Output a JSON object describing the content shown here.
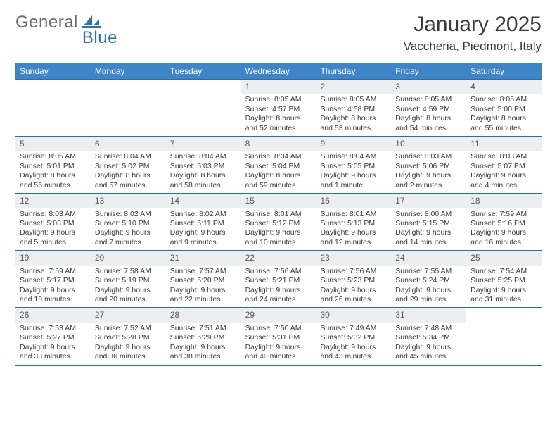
{
  "brand": {
    "name_a": "General",
    "name_b": "Blue"
  },
  "header": {
    "month_title": "January 2025",
    "location": "Vaccheria, Piedmont, Italy"
  },
  "weekdays": [
    "Sunday",
    "Monday",
    "Tuesday",
    "Wednesday",
    "Thursday",
    "Friday",
    "Saturday"
  ],
  "colors": {
    "header_bar": "#3d85c6",
    "header_text": "#ffffff",
    "week_divider": "#2e6aa3",
    "daynum_bg": "#eceff1",
    "body_text": "#3a3a3a",
    "logo_gray": "#6a6a6a",
    "logo_blue": "#2f72b3",
    "page_bg": "#ffffff"
  },
  "layout": {
    "columns": 7,
    "rows": 5
  },
  "weeks": [
    [
      {
        "empty": true
      },
      {
        "empty": true
      },
      {
        "empty": true
      },
      {
        "num": "1",
        "sunrise": "Sunrise: 8:05 AM",
        "sunset": "Sunset: 4:57 PM",
        "dl1": "Daylight: 8 hours",
        "dl2": "and 52 minutes."
      },
      {
        "num": "2",
        "sunrise": "Sunrise: 8:05 AM",
        "sunset": "Sunset: 4:58 PM",
        "dl1": "Daylight: 8 hours",
        "dl2": "and 53 minutes."
      },
      {
        "num": "3",
        "sunrise": "Sunrise: 8:05 AM",
        "sunset": "Sunset: 4:59 PM",
        "dl1": "Daylight: 8 hours",
        "dl2": "and 54 minutes."
      },
      {
        "num": "4",
        "sunrise": "Sunrise: 8:05 AM",
        "sunset": "Sunset: 5:00 PM",
        "dl1": "Daylight: 8 hours",
        "dl2": "and 55 minutes."
      }
    ],
    [
      {
        "num": "5",
        "sunrise": "Sunrise: 8:05 AM",
        "sunset": "Sunset: 5:01 PM",
        "dl1": "Daylight: 8 hours",
        "dl2": "and 56 minutes."
      },
      {
        "num": "6",
        "sunrise": "Sunrise: 8:04 AM",
        "sunset": "Sunset: 5:02 PM",
        "dl1": "Daylight: 8 hours",
        "dl2": "and 57 minutes."
      },
      {
        "num": "7",
        "sunrise": "Sunrise: 8:04 AM",
        "sunset": "Sunset: 5:03 PM",
        "dl1": "Daylight: 8 hours",
        "dl2": "and 58 minutes."
      },
      {
        "num": "8",
        "sunrise": "Sunrise: 8:04 AM",
        "sunset": "Sunset: 5:04 PM",
        "dl1": "Daylight: 8 hours",
        "dl2": "and 59 minutes."
      },
      {
        "num": "9",
        "sunrise": "Sunrise: 8:04 AM",
        "sunset": "Sunset: 5:05 PM",
        "dl1": "Daylight: 9 hours",
        "dl2": "and 1 minute."
      },
      {
        "num": "10",
        "sunrise": "Sunrise: 8:03 AM",
        "sunset": "Sunset: 5:06 PM",
        "dl1": "Daylight: 9 hours",
        "dl2": "and 2 minutes."
      },
      {
        "num": "11",
        "sunrise": "Sunrise: 8:03 AM",
        "sunset": "Sunset: 5:07 PM",
        "dl1": "Daylight: 9 hours",
        "dl2": "and 4 minutes."
      }
    ],
    [
      {
        "num": "12",
        "sunrise": "Sunrise: 8:03 AM",
        "sunset": "Sunset: 5:08 PM",
        "dl1": "Daylight: 9 hours",
        "dl2": "and 5 minutes."
      },
      {
        "num": "13",
        "sunrise": "Sunrise: 8:02 AM",
        "sunset": "Sunset: 5:10 PM",
        "dl1": "Daylight: 9 hours",
        "dl2": "and 7 minutes."
      },
      {
        "num": "14",
        "sunrise": "Sunrise: 8:02 AM",
        "sunset": "Sunset: 5:11 PM",
        "dl1": "Daylight: 9 hours",
        "dl2": "and 9 minutes."
      },
      {
        "num": "15",
        "sunrise": "Sunrise: 8:01 AM",
        "sunset": "Sunset: 5:12 PM",
        "dl1": "Daylight: 9 hours",
        "dl2": "and 10 minutes."
      },
      {
        "num": "16",
        "sunrise": "Sunrise: 8:01 AM",
        "sunset": "Sunset: 5:13 PM",
        "dl1": "Daylight: 9 hours",
        "dl2": "and 12 minutes."
      },
      {
        "num": "17",
        "sunrise": "Sunrise: 8:00 AM",
        "sunset": "Sunset: 5:15 PM",
        "dl1": "Daylight: 9 hours",
        "dl2": "and 14 minutes."
      },
      {
        "num": "18",
        "sunrise": "Sunrise: 7:59 AM",
        "sunset": "Sunset: 5:16 PM",
        "dl1": "Daylight: 9 hours",
        "dl2": "and 16 minutes."
      }
    ],
    [
      {
        "num": "19",
        "sunrise": "Sunrise: 7:59 AM",
        "sunset": "Sunset: 5:17 PM",
        "dl1": "Daylight: 9 hours",
        "dl2": "and 18 minutes."
      },
      {
        "num": "20",
        "sunrise": "Sunrise: 7:58 AM",
        "sunset": "Sunset: 5:19 PM",
        "dl1": "Daylight: 9 hours",
        "dl2": "and 20 minutes."
      },
      {
        "num": "21",
        "sunrise": "Sunrise: 7:57 AM",
        "sunset": "Sunset: 5:20 PM",
        "dl1": "Daylight: 9 hours",
        "dl2": "and 22 minutes."
      },
      {
        "num": "22",
        "sunrise": "Sunrise: 7:56 AM",
        "sunset": "Sunset: 5:21 PM",
        "dl1": "Daylight: 9 hours",
        "dl2": "and 24 minutes."
      },
      {
        "num": "23",
        "sunrise": "Sunrise: 7:56 AM",
        "sunset": "Sunset: 5:23 PM",
        "dl1": "Daylight: 9 hours",
        "dl2": "and 26 minutes."
      },
      {
        "num": "24",
        "sunrise": "Sunrise: 7:55 AM",
        "sunset": "Sunset: 5:24 PM",
        "dl1": "Daylight: 9 hours",
        "dl2": "and 29 minutes."
      },
      {
        "num": "25",
        "sunrise": "Sunrise: 7:54 AM",
        "sunset": "Sunset: 5:25 PM",
        "dl1": "Daylight: 9 hours",
        "dl2": "and 31 minutes."
      }
    ],
    [
      {
        "num": "26",
        "sunrise": "Sunrise: 7:53 AM",
        "sunset": "Sunset: 5:27 PM",
        "dl1": "Daylight: 9 hours",
        "dl2": "and 33 minutes."
      },
      {
        "num": "27",
        "sunrise": "Sunrise: 7:52 AM",
        "sunset": "Sunset: 5:28 PM",
        "dl1": "Daylight: 9 hours",
        "dl2": "and 36 minutes."
      },
      {
        "num": "28",
        "sunrise": "Sunrise: 7:51 AM",
        "sunset": "Sunset: 5:29 PM",
        "dl1": "Daylight: 9 hours",
        "dl2": "and 38 minutes."
      },
      {
        "num": "29",
        "sunrise": "Sunrise: 7:50 AM",
        "sunset": "Sunset: 5:31 PM",
        "dl1": "Daylight: 9 hours",
        "dl2": "and 40 minutes."
      },
      {
        "num": "30",
        "sunrise": "Sunrise: 7:49 AM",
        "sunset": "Sunset: 5:32 PM",
        "dl1": "Daylight: 9 hours",
        "dl2": "and 43 minutes."
      },
      {
        "num": "31",
        "sunrise": "Sunrise: 7:48 AM",
        "sunset": "Sunset: 5:34 PM",
        "dl1": "Daylight: 9 hours",
        "dl2": "and 45 minutes."
      },
      {
        "empty": true
      }
    ]
  ]
}
